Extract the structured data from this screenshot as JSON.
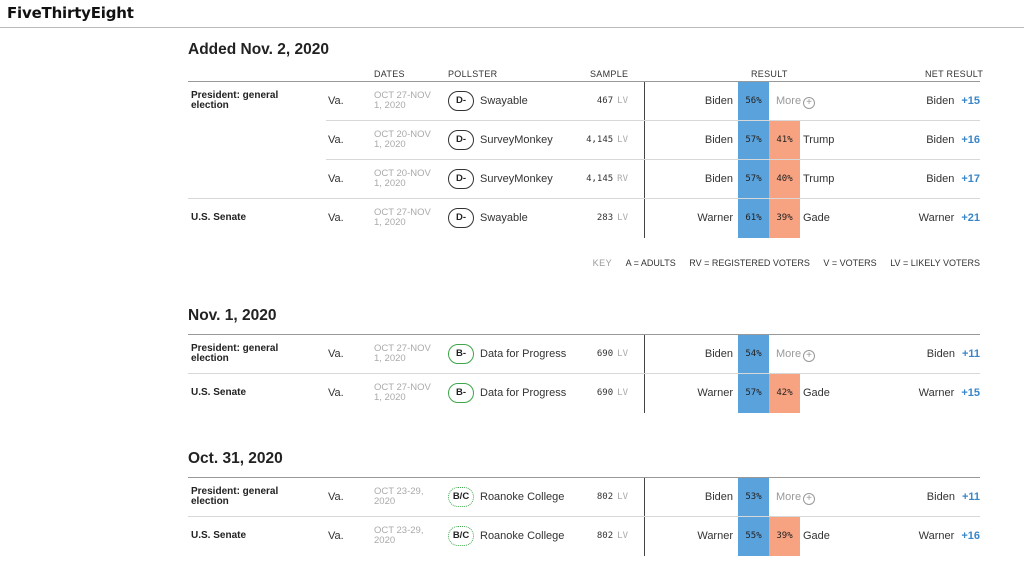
{
  "site": {
    "logo": "FiveThirtyEight"
  },
  "columns": {
    "dates": "DATES",
    "pollster": "POLLSTER",
    "sample": "SAMPLE",
    "result": "RESULT",
    "net_result": "NET RESULT"
  },
  "key": {
    "label": "KEY",
    "a": "A = ADULTS",
    "rv": "RV = REGISTERED VOTERS",
    "v": "V = VOTERS",
    "lv": "LV = LIKELY VOTERS"
  },
  "colors": {
    "dem": "#5aa2dc",
    "rep": "#f7a382",
    "margin": "#3a86c8",
    "grade_green": "#3fa64b"
  },
  "sections": [
    {
      "title": "Added Nov. 2, 2020",
      "rows": [
        {
          "race": "President: general election",
          "state": "Va.",
          "dates": "OCT 27-NOV 1, 2020",
          "grade": "D-",
          "pollster": "Swayable",
          "sample": "467",
          "population": "LV",
          "cand1": "Biden",
          "pct1": "56%",
          "more": "More",
          "net_name": "Biden",
          "net_margin": "+15"
        },
        {
          "race": "",
          "state": "Va.",
          "dates": "OCT 20-NOV 1, 2020",
          "grade": "D-",
          "pollster": "SurveyMonkey",
          "sample": "4,145",
          "population": "LV",
          "cand1": "Biden",
          "pct1": "57%",
          "pct2": "41%",
          "cand2": "Trump",
          "net_name": "Biden",
          "net_margin": "+16"
        },
        {
          "race": "",
          "state": "Va.",
          "dates": "OCT 20-NOV 1, 2020",
          "grade": "D-",
          "pollster": "SurveyMonkey",
          "sample": "4,145",
          "population": "RV",
          "cand1": "Biden",
          "pct1": "57%",
          "pct2": "40%",
          "cand2": "Trump",
          "net_name": "Biden",
          "net_margin": "+17"
        },
        {
          "race": "U.S. Senate",
          "state": "Va.",
          "dates": "OCT 27-NOV 1, 2020",
          "grade": "D-",
          "pollster": "Swayable",
          "sample": "283",
          "population": "LV",
          "cand1": "Warner",
          "pct1": "61%",
          "pct2": "39%",
          "cand2": "Gade",
          "net_name": "Warner",
          "net_margin": "+21"
        }
      ]
    },
    {
      "title": "Nov. 1, 2020",
      "rows": [
        {
          "race": "President: general election",
          "state": "Va.",
          "dates": "OCT 27-NOV 1, 2020",
          "grade": "B-",
          "pollster": "Data for Progress",
          "sample": "690",
          "population": "LV",
          "cand1": "Biden",
          "pct1": "54%",
          "more": "More",
          "net_name": "Biden",
          "net_margin": "+11"
        },
        {
          "race": "U.S. Senate",
          "state": "Va.",
          "dates": "OCT 27-NOV 1, 2020",
          "grade": "B-",
          "pollster": "Data for Progress",
          "sample": "690",
          "population": "LV",
          "cand1": "Warner",
          "pct1": "57%",
          "pct2": "42%",
          "cand2": "Gade",
          "net_name": "Warner",
          "net_margin": "+15"
        }
      ]
    },
    {
      "title": "Oct. 31, 2020",
      "rows": [
        {
          "race": "President: general election",
          "state": "Va.",
          "dates": "OCT 23-29, 2020",
          "grade": "B/C",
          "pollster": "Roanoke College",
          "sample": "802",
          "population": "LV",
          "cand1": "Biden",
          "pct1": "53%",
          "more": "More",
          "net_name": "Biden",
          "net_margin": "+11"
        },
        {
          "race": "U.S. Senate",
          "state": "Va.",
          "dates": "OCT 23-29, 2020",
          "grade": "B/C",
          "pollster": "Roanoke College",
          "sample": "802",
          "population": "LV",
          "cand1": "Warner",
          "pct1": "55%",
          "pct2": "39%",
          "cand2": "Gade",
          "net_name": "Warner",
          "net_margin": "+16"
        }
      ]
    }
  ]
}
